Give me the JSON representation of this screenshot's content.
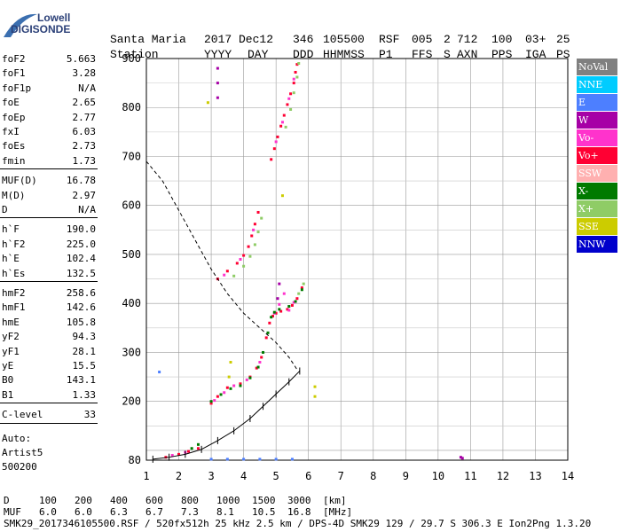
{
  "logo": {
    "line1": "Lowell",
    "line2": "DIGISONDE"
  },
  "header": {
    "labels": [
      "Station",
      "YYYY",
      "DAY",
      "DDD",
      "HHMMSS",
      "P1",
      "FFS",
      "S",
      "AXN",
      "PPS",
      "IGA",
      "PS"
    ],
    "values": [
      "Santa Maria",
      "2017",
      "Dec12",
      "346",
      "105500",
      "RSF",
      "005",
      "2",
      "712",
      "100",
      "03+",
      "25"
    ]
  },
  "params_groups": [
    [
      [
        "foF2",
        "5.663"
      ],
      [
        "foF1",
        "3.28"
      ],
      [
        "foF1p",
        "N/A"
      ],
      [
        "foE",
        "2.65"
      ],
      [
        "foEp",
        "2.77"
      ],
      [
        "fxI",
        "6.03"
      ],
      [
        "foEs",
        "2.73"
      ],
      [
        "fmin",
        "1.73"
      ]
    ],
    [
      [
        "MUF(D)",
        "16.78"
      ],
      [
        "M(D)",
        "2.97"
      ],
      [
        "D",
        "N/A"
      ]
    ],
    [
      [
        "h`F",
        "190.0"
      ],
      [
        "h`F2",
        "225.0"
      ],
      [
        "h`E",
        "102.4"
      ],
      [
        "h`Es",
        "132.5"
      ]
    ],
    [
      [
        "hmF2",
        "258.6"
      ],
      [
        "hmF1",
        "142.6"
      ],
      [
        "hmE",
        "105.8"
      ],
      [
        "yF2",
        "94.3"
      ],
      [
        "yF1",
        "28.1"
      ],
      [
        "yE",
        "15.5"
      ],
      [
        "B0",
        "143.1"
      ],
      [
        "B1",
        "1.33"
      ]
    ],
    [
      [
        "C-level",
        "33"
      ]
    ]
  ],
  "autoscaler": [
    "Auto:",
    "Artist5",
    "500200"
  ],
  "legend": [
    {
      "label": "NoVal",
      "bg": "#808080",
      "fg": "#ffffff"
    },
    {
      "label": "NNE",
      "bg": "#00ccff",
      "fg": "#ffffff"
    },
    {
      "label": "E",
      "bg": "#4d7fff",
      "fg": "#ffffff"
    },
    {
      "label": "W",
      "bg": "#a600a6",
      "fg": "#ffffff"
    },
    {
      "label": "Vo-",
      "bg": "#ff33cc",
      "fg": "#ffffff"
    },
    {
      "label": "Vo+",
      "bg": "#ff0033",
      "fg": "#ffffff"
    },
    {
      "label": "SSW",
      "bg": "#ffb0b0",
      "fg": "#ffffff"
    },
    {
      "label": "X-",
      "bg": "#007a00",
      "fg": "#ffffff"
    },
    {
      "label": "X+",
      "bg": "#8fcc66",
      "fg": "#ffffff"
    },
    {
      "label": "SSE",
      "bg": "#cccc00",
      "fg": "#ffffff"
    },
    {
      "label": "NNW",
      "bg": "#0000cc",
      "fg": "#ffffff"
    }
  ],
  "footer": {
    "d_label": "D",
    "d_values": [
      "100",
      "200",
      "400",
      "600",
      "800",
      "1000",
      "1500",
      "3000",
      "[km]"
    ],
    "muf_label": "MUF",
    "muf_values": [
      "6.0",
      "6.0",
      "6.3",
      "6.7",
      "7.3",
      "8.1",
      "10.5",
      "16.8",
      "[MHz]"
    ],
    "status": "SMK29_2017346105500.RSF / 520fx512h 25 kHz 2.5 km / DPS-4D SMK29 129 / 29.7 S 306.3 E Ion2Png 1.3.20"
  },
  "chart_data": {
    "type": "scatter",
    "xlim": [
      1,
      14
    ],
    "ylim": [
      80,
      900
    ],
    "x_ticks": [
      1,
      2,
      3,
      4,
      5,
      6,
      7,
      8,
      9,
      10,
      11,
      12,
      13,
      14
    ],
    "y_ticks": [
      80,
      200,
      300,
      400,
      500,
      600,
      700,
      800,
      900
    ],
    "grid": true,
    "series": [
      {
        "color": "#ff0033",
        "points": [
          [
            1.6,
            86
          ],
          [
            2.0,
            92
          ],
          [
            2.3,
            98
          ],
          [
            2.6,
            104
          ],
          [
            3.0,
            196
          ],
          [
            3.2,
            210
          ],
          [
            3.5,
            228
          ],
          [
            3.9,
            236
          ],
          [
            4.2,
            250
          ],
          [
            4.4,
            268
          ],
          [
            4.55,
            290
          ],
          [
            4.7,
            330
          ],
          [
            4.8,
            360
          ],
          [
            4.9,
            374
          ],
          [
            5.0,
            380
          ],
          [
            5.15,
            384
          ],
          [
            5.35,
            388
          ],
          [
            5.5,
            396
          ],
          [
            5.65,
            410
          ],
          [
            5.8,
            432
          ],
          [
            3.2,
            450
          ],
          [
            3.5,
            466
          ],
          [
            3.8,
            482
          ],
          [
            4.0,
            498
          ],
          [
            4.15,
            516
          ],
          [
            4.25,
            538
          ],
          [
            4.35,
            562
          ],
          [
            4.45,
            586
          ],
          [
            4.85,
            694
          ],
          [
            4.95,
            716
          ],
          [
            5.05,
            740
          ],
          [
            5.15,
            762
          ],
          [
            5.25,
            784
          ],
          [
            5.35,
            806
          ],
          [
            5.45,
            828
          ],
          [
            5.55,
            850
          ],
          [
            5.6,
            872
          ],
          [
            5.65,
            888
          ]
        ]
      },
      {
        "color": "#ff33cc",
        "points": [
          [
            1.8,
            90
          ],
          [
            2.2,
            96
          ],
          [
            3.1,
            202
          ],
          [
            3.4,
            218
          ],
          [
            3.7,
            232
          ],
          [
            4.1,
            244
          ],
          [
            4.5,
            280
          ],
          [
            4.95,
            380
          ],
          [
            5.1,
            398
          ],
          [
            5.25,
            420
          ],
          [
            5.4,
            386
          ],
          [
            5.55,
            402
          ],
          [
            3.4,
            458
          ],
          [
            3.9,
            490
          ],
          [
            4.3,
            550
          ],
          [
            5.0,
            730
          ],
          [
            5.2,
            770
          ],
          [
            5.4,
            818
          ],
          [
            5.55,
            858
          ]
        ]
      },
      {
        "color": "#007a00",
        "points": [
          [
            2.4,
            104
          ],
          [
            2.6,
            112
          ],
          [
            3.0,
            200
          ],
          [
            3.3,
            214
          ],
          [
            3.6,
            226
          ],
          [
            3.9,
            232
          ],
          [
            4.2,
            248
          ],
          [
            4.45,
            270
          ],
          [
            4.6,
            300
          ],
          [
            4.75,
            340
          ],
          [
            4.85,
            372
          ],
          [
            4.95,
            382
          ],
          [
            5.1,
            388
          ],
          [
            5.4,
            394
          ],
          [
            5.6,
            404
          ],
          [
            5.8,
            428
          ]
        ]
      },
      {
        "color": "#8fcc66",
        "points": [
          [
            3.7,
            456
          ],
          [
            4.0,
            476
          ],
          [
            4.2,
            496
          ],
          [
            4.35,
            520
          ],
          [
            4.45,
            546
          ],
          [
            4.55,
            574
          ],
          [
            5.3,
            760
          ],
          [
            5.45,
            796
          ],
          [
            5.55,
            830
          ],
          [
            5.65,
            862
          ],
          [
            5.7,
            890
          ],
          [
            5.85,
            440
          ],
          [
            5.7,
            420
          ]
        ]
      },
      {
        "color": "#a600a6",
        "points": [
          [
            3.2,
            880
          ],
          [
            3.2,
            850
          ],
          [
            3.2,
            820
          ],
          [
            5.05,
            410
          ],
          [
            5.1,
            440
          ],
          [
            10.7,
            86
          ],
          [
            10.75,
            84
          ]
        ]
      },
      {
        "color": "#cccc00",
        "points": [
          [
            3.55,
            250
          ],
          [
            3.6,
            280
          ],
          [
            5.2,
            620
          ],
          [
            6.2,
            210
          ],
          [
            6.2,
            230
          ],
          [
            2.9,
            810
          ]
        ]
      },
      {
        "color": "#4d7fff",
        "points": [
          [
            3.0,
            82
          ],
          [
            3.5,
            82
          ],
          [
            4.0,
            82
          ],
          [
            4.5,
            82
          ],
          [
            5.0,
            82
          ],
          [
            5.5,
            82
          ],
          [
            1.4,
            260
          ]
        ]
      }
    ],
    "profile_solid": [
      [
        1.2,
        82
      ],
      [
        1.7,
        86
      ],
      [
        2.2,
        92
      ],
      [
        2.7,
        102
      ],
      [
        3.2,
        120
      ],
      [
        3.7,
        140
      ],
      [
        4.2,
        165
      ],
      [
        4.6,
        190
      ],
      [
        5.0,
        215
      ],
      [
        5.4,
        240
      ],
      [
        5.73,
        262
      ]
    ],
    "profile_dashed": [
      [
        1.0,
        690
      ],
      [
        1.5,
        650
      ],
      [
        2.0,
        590
      ],
      [
        2.5,
        530
      ],
      [
        3.0,
        470
      ],
      [
        3.5,
        420
      ],
      [
        4.0,
        380
      ],
      [
        4.5,
        350
      ],
      [
        5.0,
        320
      ],
      [
        5.4,
        290
      ],
      [
        5.65,
        265
      ]
    ]
  }
}
